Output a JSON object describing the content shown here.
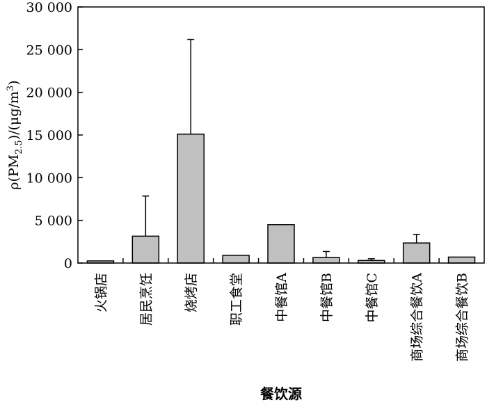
{
  "chart_data": {
    "type": "bar",
    "xlabel": "餐饮源",
    "ylabel": {
      "prefix": "ρ(PM",
      "subscript": "2.5",
      "middle": ")/(μg/m",
      "superscript": "3",
      "suffix": ")"
    },
    "ylim": [
      0,
      30000
    ],
    "yticks": [
      0,
      5000,
      10000,
      15000,
      20000,
      25000,
      30000
    ],
    "ytick_labels": [
      "0",
      "5 000",
      "10 000",
      "15 000",
      "20 000",
      "25 000",
      "30 000"
    ],
    "categories": [
      "火锅店",
      "居民烹饪",
      "烧烤店",
      "职工食堂",
      "中餐馆A",
      "中餐馆B",
      "中餐馆C",
      "商场综合餐饮A",
      "商场综合餐饮B"
    ],
    "values": [
      250,
      3150,
      15100,
      900,
      4500,
      650,
      300,
      2350,
      700
    ],
    "error_upper": [
      0,
      7850,
      26200,
      0,
      0,
      1350,
      500,
      3350,
      0
    ],
    "bar_color": "#c0c0c0",
    "grid": false
  }
}
